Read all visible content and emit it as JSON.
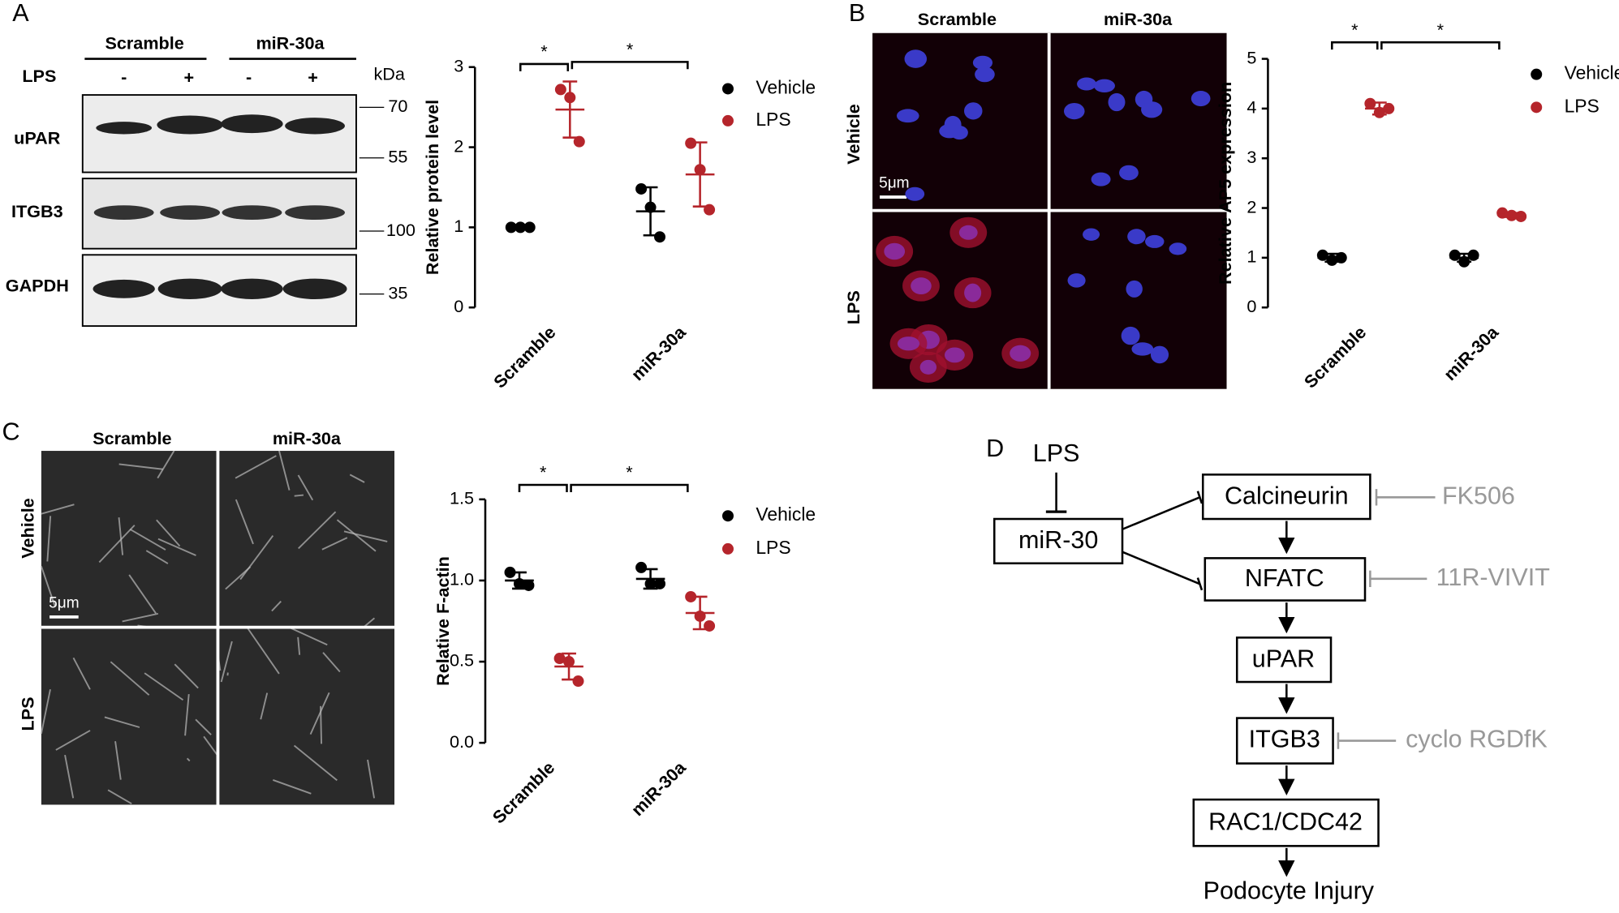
{
  "panels": {
    "a": "A",
    "b": "B",
    "c": "C",
    "d": "D"
  },
  "blot": {
    "groups": [
      "Scramble",
      "miR-30a"
    ],
    "treatment": "LPS",
    "lanes": [
      "-",
      "+",
      "-",
      "+"
    ],
    "unit": "kDa",
    "rows": [
      {
        "label": "uPAR",
        "markers": [
          "70",
          "55"
        ]
      },
      {
        "label": "ITGB3",
        "markers": [
          "100"
        ]
      },
      {
        "label": "GAPDH",
        "markers": [
          "35"
        ]
      }
    ]
  },
  "images_b": {
    "columns": [
      "Scramble",
      "miR-30a"
    ],
    "rows": [
      "Vehicle",
      "LPS"
    ],
    "scale_bar": "5μm"
  },
  "images_c": {
    "columns": [
      "Scramble",
      "miR-30a"
    ],
    "rows": [
      "Vehicle",
      "LPS"
    ],
    "scale_bar": "5μm"
  },
  "chart_data": [
    {
      "type": "scatter",
      "y_label": "Relative protein level",
      "categories": [
        "Scramble",
        "miR-30a"
      ],
      "ylim": [
        0,
        3
      ],
      "yticks": [
        0,
        1,
        2,
        3
      ],
      "annotations": [
        "*",
        "*"
      ],
      "series": [
        {
          "name": "Vehicle",
          "color": "#000000",
          "values": [
            1.0,
            1.2
          ],
          "errors": [
            0.0,
            0.3
          ],
          "points": [
            [
              1,
              1,
              1
            ],
            [
              1.48,
              1.25,
              0.88
            ]
          ]
        },
        {
          "name": "LPS",
          "color": "#b5252b",
          "values": [
            2.47,
            1.66
          ],
          "errors": [
            0.35,
            0.4
          ],
          "points": [
            [
              2.72,
              2.62,
              2.07
            ],
            [
              2.05,
              1.72,
              1.22
            ]
          ]
        }
      ]
    },
    {
      "type": "scatter",
      "y_label": "Relative AP5 expression",
      "categories": [
        "Scramble",
        "miR-30a"
      ],
      "ylim": [
        0,
        5
      ],
      "yticks": [
        0,
        1,
        2,
        3,
        4,
        5
      ],
      "annotations": [
        "*",
        "*"
      ],
      "series": [
        {
          "name": "Vehicle",
          "color": "#000000",
          "values": [
            1.0,
            1.0
          ],
          "errors": [
            0.08,
            0.08
          ],
          "points": [
            [
              1.05,
              0.95,
              1.0
            ],
            [
              1.05,
              0.92,
              1.05
            ]
          ]
        },
        {
          "name": "LPS",
          "color": "#b5252b",
          "values": [
            4.0,
            1.86
          ],
          "errors": [
            0.12,
            0.04
          ],
          "points": [
            [
              4.1,
              3.92,
              4.0
            ],
            [
              1.9,
              1.85,
              1.83
            ]
          ]
        }
      ]
    },
    {
      "type": "scatter",
      "y_label": "Relative F-actin",
      "categories": [
        "Scramble",
        "miR-30a"
      ],
      "ylim": [
        0,
        1.5
      ],
      "yticks": [
        {
          "value": 0,
          "label": "0.0"
        },
        {
          "value": 0.5,
          "label": "0.5"
        },
        {
          "value": 1,
          "label": "1.0"
        },
        {
          "value": 1.5,
          "label": "1.5"
        }
      ],
      "annotations": [
        "*",
        "*"
      ],
      "series": [
        {
          "name": "Vehicle",
          "color": "#000000",
          "values": [
            1.0,
            1.01
          ],
          "errors": [
            0.05,
            0.06
          ],
          "points": [
            [
              1.05,
              0.98,
              0.97
            ],
            [
              1.08,
              0.98,
              0.98
            ]
          ]
        },
        {
          "name": "LPS",
          "color": "#b5252b",
          "values": [
            0.47,
            0.8
          ],
          "errors": [
            0.08,
            0.1
          ],
          "points": [
            [
              0.52,
              0.5,
              0.38
            ],
            [
              0.9,
              0.78,
              0.72
            ]
          ]
        }
      ]
    }
  ],
  "diagram": {
    "nodes": [
      "LPS",
      "miR-30",
      "Calcineurin",
      "NFATC",
      "uPAR",
      "ITGB3",
      "RAC1/CDC42",
      "Podocyte Injury"
    ],
    "inhibitors": [
      "FK506",
      "11R-VIVIT",
      "cyclo RGDfK"
    ]
  }
}
